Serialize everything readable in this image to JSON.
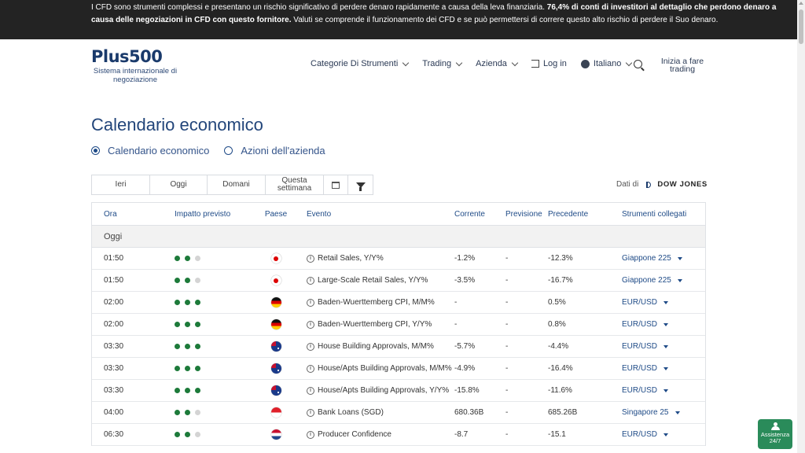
{
  "banner": {
    "part1": "I CFD sono strumenti complessi e presentano un rischio significativo di perdere denaro rapidamente a causa della leva finanziaria. ",
    "bold": "76,4% di conti di investitori al dettaglio che perdono denaro a causa delle negoziazioni in CFD con questo fornitore.",
    "part2": " Valuti se comprende il funzionamento dei CFD e se può permettersi di correre questo alto rischio di perdere il Suo denaro."
  },
  "logo": {
    "brand": "Plus500",
    "tagline": "Sistema internazionale di negoziazione"
  },
  "nav": {
    "categories": "Categorie Di Strumenti",
    "trading": "Trading",
    "company": "Azienda",
    "login": "Log in",
    "language": "Italiano",
    "cta": "Inizia a fare trading"
  },
  "page": {
    "title": "Calendario economico",
    "radios": [
      "Calendario economico",
      "Azioni dell'azienda"
    ]
  },
  "filters": {
    "yesterday": "Ieri",
    "today": "Oggi",
    "tomorrow": "Domani",
    "this_week": "Questa settimana"
  },
  "source": {
    "label": "Dati di",
    "provider": "DOW JONES"
  },
  "table": {
    "headers": {
      "time": "Ora",
      "impact": "Impatto previsto",
      "country": "Paese",
      "event": "Evento",
      "current": "Corrente",
      "forecast": "Previsione",
      "previous": "Precedente",
      "instruments": "Strumenti collegati"
    },
    "group": "Oggi",
    "rows": [
      {
        "time": "01:50",
        "impact": 1,
        "flag": "japan-flag",
        "event": "Retail Sales, Y/Y%",
        "current": "-1.2%",
        "forecast": "-",
        "previous": "-12.3%",
        "instrument": "Giappone 225"
      },
      {
        "time": "01:50",
        "impact": 1,
        "flag": "japan-flag",
        "event": "Large-Scale Retail Sales, Y/Y%",
        "current": "-3.5%",
        "forecast": "-",
        "previous": "-16.7%",
        "instrument": "Giappone 225"
      },
      {
        "time": "02:00",
        "impact": 2,
        "flag": "germany-flag",
        "event": "Baden-Wuerttemberg CPI, M/M%",
        "current": "-",
        "forecast": "-",
        "previous": "0.5%",
        "instrument": "EUR/USD"
      },
      {
        "time": "02:00",
        "impact": 2,
        "flag": "germany-flag",
        "event": "Baden-Wuerttemberg CPI, Y/Y%",
        "current": "-",
        "forecast": "-",
        "previous": "0.8%",
        "instrument": "EUR/USD"
      },
      {
        "time": "03:30",
        "impact": 2,
        "flag": "australia-flag",
        "event": "House Building Approvals, M/M%",
        "current": "-5.7%",
        "forecast": "-",
        "previous": "-4.4%",
        "instrument": "EUR/USD"
      },
      {
        "time": "03:30",
        "impact": 2,
        "flag": "australia-flag",
        "event": "House/Apts Building Approvals, M/M%",
        "current": "-4.9%",
        "forecast": "-",
        "previous": "-16.4%",
        "instrument": "EUR/USD"
      },
      {
        "time": "03:30",
        "impact": 2,
        "flag": "australia-flag",
        "event": "House/Apts Building Approvals, Y/Y%",
        "current": "-15.8%",
        "forecast": "-",
        "previous": "-11.6%",
        "instrument": "EUR/USD"
      },
      {
        "time": "04:00",
        "impact": 1,
        "flag": "singapore-flag",
        "event": "Bank Loans (SGD)",
        "current": "680.36B",
        "forecast": "-",
        "previous": "685.26B",
        "instrument": "Singapore 25"
      },
      {
        "time": "06:30",
        "impact": 1,
        "flag": "netherlands-flag",
        "event": "Producer Confidence",
        "current": "-8.7",
        "forecast": "-",
        "previous": "-15.1",
        "instrument": "EUR/USD"
      }
    ]
  },
  "help": {
    "line1": "Assistenza",
    "line2": "24/7"
  },
  "colors": {
    "brand": "#1a3a6b",
    "link": "#1f4b87",
    "impact_on": "#1d7a3a",
    "help_bg": "#2a8b5a"
  }
}
